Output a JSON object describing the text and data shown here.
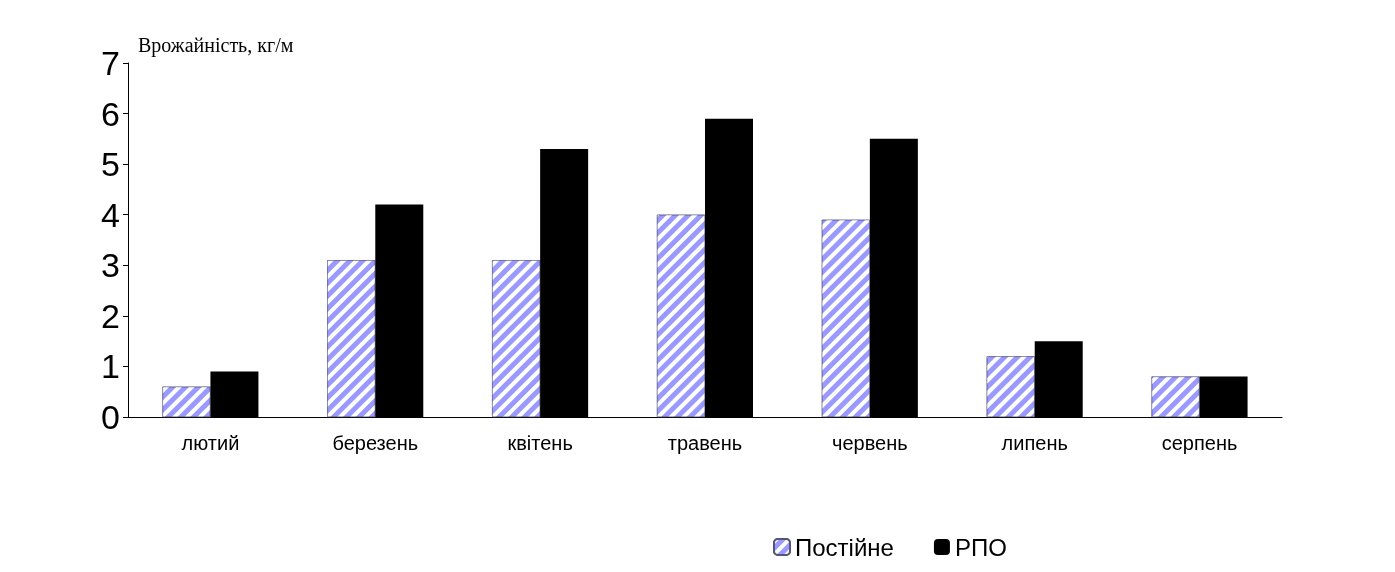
{
  "chart_data": {
    "type": "bar",
    "ylabel": "Врожайність, кг/м",
    "categories": [
      "лютий",
      "березень",
      "квітень",
      "травень",
      "червень",
      "липень",
      "серпень"
    ],
    "series": [
      {
        "name": "Постійне",
        "color": "#9999ff",
        "values": [
          0.6,
          3.1,
          3.1,
          4.0,
          3.9,
          1.2,
          0.8
        ]
      },
      {
        "name": "РПО",
        "color": "#000000",
        "values": [
          0.9,
          4.2,
          5.3,
          5.9,
          5.5,
          1.5,
          0.8
        ]
      }
    ],
    "ylim": [
      0,
      7
    ],
    "yticks": [
      0,
      1,
      2,
      3,
      4,
      5,
      6,
      7
    ],
    "grid": false,
    "legend": "bottom"
  }
}
